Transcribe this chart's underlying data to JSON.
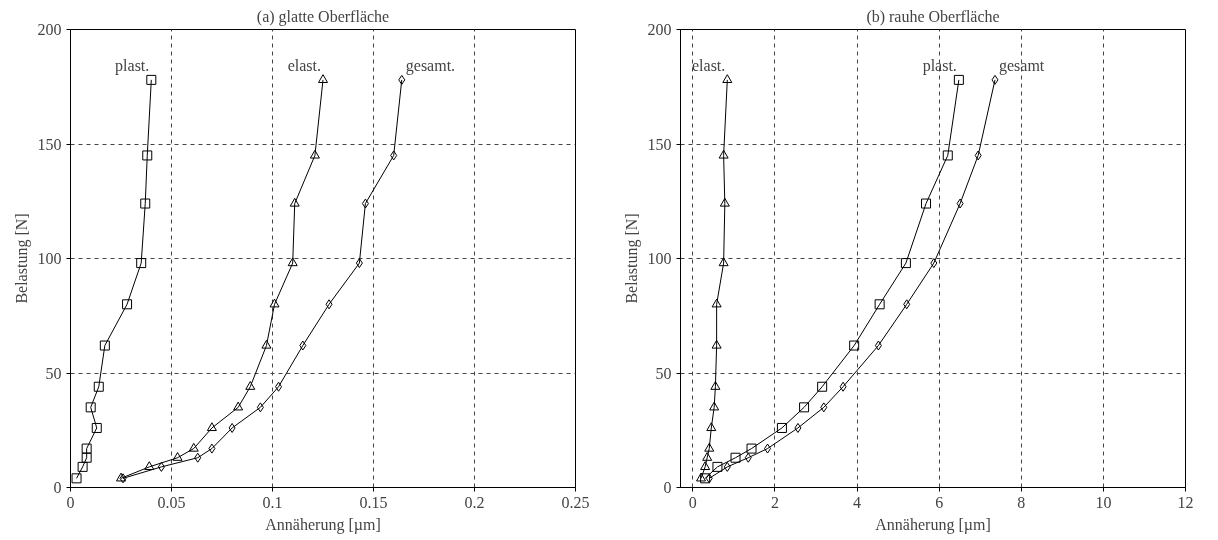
{
  "chart_data": [
    {
      "type": "line",
      "title": "(a) glatte Oberfläche",
      "xlabel": "Annäherung [µm]",
      "ylabel": "Belastung [N]",
      "xlim": [
        0,
        0.25
      ],
      "xticks": [
        0,
        0.05,
        0.1,
        0.15,
        0.2,
        0.25
      ],
      "ylim": [
        0,
        200
      ],
      "yticks": [
        0,
        50,
        100,
        150,
        200
      ],
      "grid": true,
      "line_style": "solid",
      "series": [
        {
          "name": "plast.",
          "color": "#000000",
          "marker": "square",
          "x": [
            0.04,
            0.038,
            0.037,
            0.035,
            0.028,
            0.017,
            0.014,
            0.01,
            0.013,
            0.008,
            0.008,
            0.006,
            0.003
          ],
          "values": [
            178,
            145,
            124,
            98,
            80,
            62,
            44,
            35,
            26,
            17,
            13,
            9,
            4
          ]
        },
        {
          "name": "elast.",
          "color": "#000000",
          "marker": "triangle",
          "x": [
            0.125,
            0.121,
            0.111,
            0.11,
            0.101,
            0.097,
            0.089,
            0.083,
            0.07,
            0.061,
            0.053,
            0.039,
            0.025
          ],
          "values": [
            178,
            145,
            124,
            98,
            80,
            62,
            44,
            35,
            26,
            17,
            13,
            9,
            4
          ]
        },
        {
          "name": "gesamt.",
          "color": "#000000",
          "marker": "diamond",
          "x": [
            0.164,
            0.16,
            0.146,
            0.143,
            0.128,
            0.115,
            0.103,
            0.094,
            0.08,
            0.07,
            0.063,
            0.045,
            0.026
          ],
          "values": [
            178,
            145,
            124,
            98,
            80,
            62,
            44,
            35,
            26,
            17,
            13,
            9,
            4
          ]
        }
      ]
    },
    {
      "type": "line",
      "title": "(b) rauhe Oberfläche",
      "xlabel": "Annäherung [µm]",
      "ylabel": "Belastung [N]",
      "xlim": [
        -0.3,
        12
      ],
      "xticks": [
        0,
        2,
        4,
        6,
        8,
        10,
        12
      ],
      "ylim": [
        0,
        200
      ],
      "yticks": [
        0,
        50,
        100,
        150,
        200
      ],
      "grid": true,
      "line_style": "solid",
      "series": [
        {
          "name": "elast.",
          "color": "#000000",
          "marker": "triangle",
          "x": [
            0.84,
            0.75,
            0.78,
            0.75,
            0.58,
            0.58,
            0.55,
            0.52,
            0.45,
            0.4,
            0.35,
            0.3,
            0.2
          ],
          "values": [
            178,
            145,
            124,
            98,
            80,
            62,
            44,
            35,
            26,
            17,
            13,
            9,
            4
          ]
        },
        {
          "name": "plast.",
          "color": "#000000",
          "marker": "square",
          "x": [
            6.48,
            6.21,
            5.68,
            5.19,
            4.55,
            3.93,
            3.15,
            2.71,
            2.17,
            1.43,
            1.04,
            0.6,
            0.3
          ],
          "values": [
            178,
            145,
            124,
            98,
            80,
            62,
            44,
            35,
            26,
            17,
            13,
            9,
            4
          ]
        },
        {
          "name": "gesamt",
          "color": "#000000",
          "marker": "diamond",
          "x": [
            7.36,
            6.95,
            6.51,
            5.87,
            5.21,
            4.52,
            3.66,
            3.19,
            2.56,
            1.82,
            1.35,
            0.84,
            0.4
          ],
          "values": [
            178,
            145,
            124,
            98,
            80,
            62,
            44,
            35,
            26,
            17,
            13,
            9,
            4
          ]
        }
      ]
    }
  ]
}
